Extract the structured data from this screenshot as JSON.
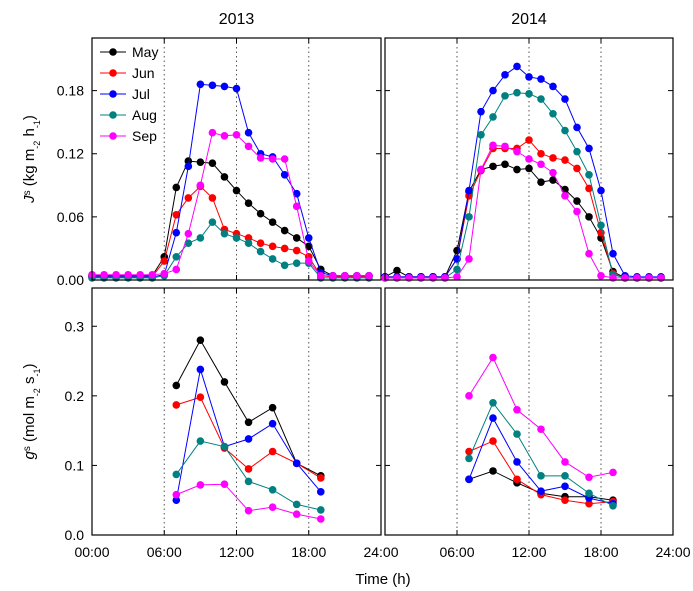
{
  "chart_data": [
    {
      "type": "line",
      "title": "2013",
      "ylabel": [
        "J",
        "s",
        " (kg m",
        "-2",
        " h",
        "-1",
        ")"
      ],
      "legend": "upper left",
      "xlim": [
        0,
        24
      ],
      "ylim": [
        0,
        0.23
      ],
      "yticks": [
        {
          "value": 0,
          "label": "0.00"
        },
        0.06,
        0.12,
        0.18
      ],
      "x": [
        0,
        1,
        2,
        3,
        4,
        5,
        6,
        7,
        8,
        9,
        10,
        11,
        12,
        13,
        14,
        15,
        16,
        17,
        18,
        19,
        20,
        21,
        22,
        23
      ],
      "series": [
        {
          "name": "May",
          "color": "#000000",
          "values": [
            0.004,
            0.004,
            0.004,
            0.004,
            0.004,
            0.004,
            0.022,
            0.088,
            0.113,
            0.112,
            0.111,
            0.098,
            0.085,
            0.073,
            0.063,
            0.055,
            0.047,
            0.04,
            0.032,
            0.01,
            0.004,
            0.004,
            0.004,
            0.004
          ]
        },
        {
          "name": "Jun",
          "color": "#ff0000",
          "values": [
            0.003,
            0.003,
            0.003,
            0.003,
            0.003,
            0.003,
            0.018,
            0.062,
            0.078,
            0.089,
            0.078,
            0.048,
            0.044,
            0.04,
            0.035,
            0.032,
            0.03,
            0.028,
            0.022,
            0.004,
            0.003,
            0.003,
            0.003,
            0.003
          ]
        },
        {
          "name": "Jul",
          "color": "#0000ff",
          "values": [
            0.003,
            0.003,
            0.003,
            0.003,
            0.003,
            0.003,
            0.005,
            0.045,
            0.108,
            0.186,
            0.185,
            0.184,
            0.182,
            0.14,
            0.12,
            0.117,
            0.1,
            0.082,
            0.04,
            0.007,
            0.004,
            0.004,
            0.004,
            0.004
          ]
        },
        {
          "name": "Aug",
          "color": "#008080",
          "values": [
            0.002,
            0.002,
            0.002,
            0.002,
            0.002,
            0.002,
            0.004,
            0.022,
            0.035,
            0.04,
            0.055,
            0.044,
            0.04,
            0.035,
            0.027,
            0.02,
            0.014,
            0.016,
            0.016,
            0.002,
            0.002,
            0.002,
            0.002,
            0.002
          ]
        },
        {
          "name": "Sep",
          "color": "#ff00ff",
          "values": [
            0.005,
            0.005,
            0.005,
            0.005,
            0.005,
            0.005,
            0.006,
            0.01,
            0.044,
            0.09,
            0.14,
            0.137,
            0.138,
            0.127,
            0.116,
            0.115,
            0.115,
            0.07,
            0.018,
            0.004,
            0.004,
            0.004,
            0.004,
            0.004
          ]
        }
      ]
    },
    {
      "type": "line",
      "title": "2014",
      "xlim": [
        0,
        24
      ],
      "ylim": [
        0,
        0.23
      ],
      "x": [
        0,
        1,
        2,
        3,
        4,
        5,
        6,
        7,
        8,
        9,
        10,
        11,
        12,
        13,
        14,
        15,
        16,
        17,
        18,
        19,
        20,
        21,
        22,
        23
      ],
      "series": [
        {
          "color": "#000000",
          "values": [
            0.003,
            0.009,
            0.003,
            0.003,
            0.003,
            0.003,
            0.028,
            0.084,
            0.105,
            0.108,
            0.11,
            0.105,
            0.106,
            0.093,
            0.095,
            0.086,
            0.075,
            0.06,
            0.04,
            0.008,
            0.002,
            0.002,
            0.002,
            0.002
          ]
        },
        {
          "color": "#ff0000",
          "values": [
            0.003,
            0.003,
            0.003,
            0.003,
            0.003,
            0.003,
            0.02,
            0.08,
            0.104,
            0.125,
            0.125,
            0.125,
            0.133,
            0.12,
            0.116,
            0.114,
            0.106,
            0.087,
            0.045,
            0.006,
            0.002,
            0.002,
            0.002,
            0.002
          ]
        },
        {
          "color": "#0000ff",
          "values": [
            0.003,
            0.003,
            0.003,
            0.003,
            0.003,
            0.003,
            0.02,
            0.085,
            0.16,
            0.18,
            0.195,
            0.203,
            0.193,
            0.191,
            0.184,
            0.172,
            0.145,
            0.125,
            0.085,
            0.025,
            0.004,
            0.003,
            0.003,
            0.003
          ]
        },
        {
          "color": "#008080",
          "values": [
            0.002,
            0.002,
            0.002,
            0.002,
            0.002,
            0.002,
            0.01,
            0.06,
            0.138,
            0.155,
            0.175,
            0.178,
            0.177,
            0.172,
            0.158,
            0.142,
            0.122,
            0.1,
            0.052,
            0.005,
            0.002,
            0.002,
            0.002,
            0.002
          ]
        },
        {
          "color": "#ff00ff",
          "values": [
            0.002,
            0.002,
            0.002,
            0.002,
            0.002,
            0.002,
            0.003,
            0.02,
            0.105,
            0.128,
            0.127,
            0.122,
            0.115,
            0.11,
            0.102,
            0.08,
            0.065,
            0.025,
            0.004,
            0.002,
            0.002,
            0.002,
            0.002,
            0.002
          ]
        }
      ]
    },
    {
      "type": "line",
      "ylabel": [
        "g",
        "s",
        " (mol m",
        "-2",
        " s",
        "-1",
        ")"
      ],
      "xlabel": "Time (h)",
      "xlim": [
        0,
        24
      ],
      "ylim": [
        0,
        0.355
      ],
      "xticks": [
        {
          "value": 0,
          "label": "00:00"
        },
        {
          "value": 6,
          "label": "06:00"
        },
        {
          "value": 12,
          "label": "12:00"
        },
        {
          "value": 18,
          "label": "18:00"
        },
        {
          "value": 24,
          "label": "24:00"
        }
      ],
      "yticks": [
        {
          "value": 0,
          "label": "0.0"
        },
        0.1,
        0.2,
        0.3
      ],
      "x": [
        7,
        9,
        11,
        13,
        15,
        17,
        19
      ],
      "series": [
        {
          "color": "#000000",
          "values": [
            0.215,
            0.28,
            0.22,
            0.162,
            0.183,
            0.103,
            0.085
          ]
        },
        {
          "color": "#ff0000",
          "values": [
            0.187,
            0.198,
            0.125,
            0.095,
            0.12,
            0.103,
            0.082
          ]
        },
        {
          "color": "#0000ff",
          "values": [
            0.05,
            0.238,
            0.127,
            0.138,
            0.16,
            0.103,
            0.062
          ]
        },
        {
          "color": "#008080",
          "values": [
            0.087,
            0.135,
            0.127,
            0.077,
            0.065,
            0.044,
            0.036
          ]
        },
        {
          "color": "#ff00ff",
          "values": [
            0.058,
            0.072,
            0.073,
            0.035,
            0.04,
            0.03,
            0.023
          ]
        }
      ]
    },
    {
      "type": "line",
      "xlim": [
        0,
        24
      ],
      "ylim": [
        0,
        0.355
      ],
      "xticks": [
        {
          "value": 6,
          "label": "06:00"
        },
        {
          "value": 12,
          "label": "12:00"
        },
        {
          "value": 18,
          "label": "18:00"
        },
        {
          "value": 24,
          "label": "24:00"
        }
      ],
      "x": [
        7,
        9,
        11,
        13,
        15,
        17,
        19
      ],
      "series": [
        {
          "color": "#000000",
          "values": [
            0.08,
            0.092,
            0.075,
            0.06,
            0.055,
            0.055,
            0.05
          ]
        },
        {
          "color": "#ff0000",
          "values": [
            0.12,
            0.135,
            0.08,
            0.058,
            0.05,
            0.045,
            0.048
          ]
        },
        {
          "color": "#0000ff",
          "values": [
            0.08,
            0.168,
            0.105,
            0.063,
            0.07,
            0.053,
            0.045
          ]
        },
        {
          "color": "#008080",
          "values": [
            0.11,
            0.19,
            0.145,
            0.085,
            0.085,
            0.06,
            0.042
          ]
        },
        {
          "color": "#ff00ff",
          "values": [
            0.2,
            0.255,
            0.18,
            0.152,
            0.105,
            0.083,
            0.09
          ]
        }
      ]
    }
  ]
}
